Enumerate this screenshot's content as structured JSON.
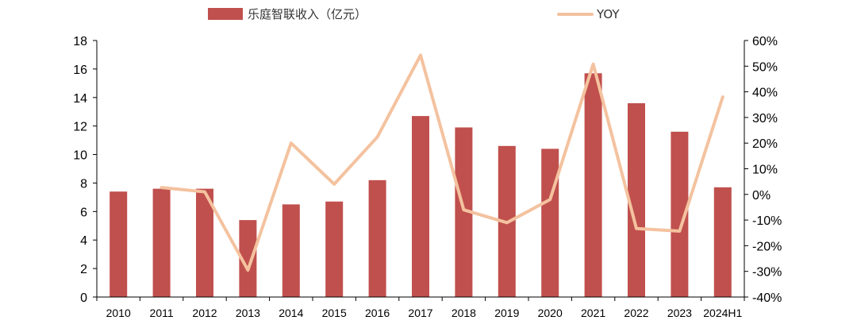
{
  "chart_data": {
    "type": "bar",
    "categories": [
      "2010",
      "2011",
      "2012",
      "2013",
      "2014",
      "2015",
      "2016",
      "2017",
      "2018",
      "2019",
      "2020",
      "2021",
      "2022",
      "2023",
      "2024H1"
    ],
    "series": [
      {
        "name": "乐庭智联收入（亿元）",
        "type": "bar",
        "axis": "left",
        "color": "#C0504D",
        "values": [
          7.4,
          7.6,
          7.6,
          5.4,
          6.5,
          6.7,
          8.2,
          12.7,
          11.9,
          10.6,
          10.4,
          15.7,
          13.6,
          11.6,
          7.7
        ]
      },
      {
        "name": "YOY",
        "type": "line",
        "axis": "right",
        "color": "#F4C29F",
        "values": [
          null,
          2.7,
          1.0,
          -29.5,
          20.0,
          4.0,
          22.4,
          54.3,
          -6.0,
          -11.0,
          -2.0,
          50.8,
          -13.3,
          -14.3,
          38.0
        ]
      }
    ],
    "yaxis_left": {
      "min": 0,
      "max": 18,
      "step": 2,
      "ticks": [
        "0",
        "2",
        "4",
        "6",
        "8",
        "10",
        "12",
        "14",
        "16",
        "18"
      ]
    },
    "yaxis_right": {
      "min": -40,
      "max": 60,
      "step": 10,
      "ticks": [
        "-40%",
        "-30%",
        "-20%",
        "-10%",
        "0%",
        "10%",
        "20%",
        "30%",
        "40%",
        "50%",
        "60%"
      ]
    },
    "legend": {
      "position": "top",
      "items": [
        {
          "label": "乐庭智联收入（亿元）",
          "color": "#C0504D",
          "shape": "rect"
        },
        {
          "label": "YOY",
          "color": "#F4C29F",
          "shape": "line"
        }
      ]
    },
    "grid": false
  }
}
